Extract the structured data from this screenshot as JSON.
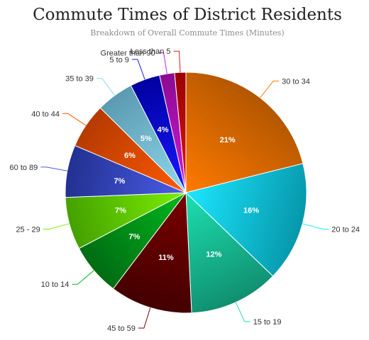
{
  "chart_data": {
    "type": "pie",
    "title": "Commute Times of District Residents",
    "subtitle": "Breakdown of Overall Commute Times (Minutes)",
    "slices": [
      {
        "label": "30 to 34",
        "value": 21,
        "display": "21%",
        "color_inner": "#ff7a00",
        "color_outer": "#b35600"
      },
      {
        "label": "20 to 24",
        "value": 16,
        "display": "16%",
        "color_inner": "#1ce6ff",
        "color_outer": "#0697aa"
      },
      {
        "label": "15 to 19",
        "value": 12,
        "display": "12%",
        "color_inner": "#1de0b0",
        "color_outer": "#108f70"
      },
      {
        "label": "45 to 59",
        "value": 11,
        "display": "11%",
        "color_inner": "#7a0000",
        "color_outer": "#430000"
      },
      {
        "label": "10 to 14",
        "value": 7,
        "display": "7%",
        "color_inner": "#00b81c",
        "color_outer": "#006b12"
      },
      {
        "label": "25 - 29",
        "value": 7,
        "display": "7%",
        "color_inner": "#7cf000",
        "color_outer": "#44a000"
      },
      {
        "label": "60 to 89",
        "value": 7,
        "display": "7%",
        "color_inner": "#4a5ee8",
        "color_outer": "#223090"
      },
      {
        "label": "40 to 44",
        "value": 6,
        "display": "6%",
        "color_inner": "#ff5a00",
        "color_outer": "#b53a00"
      },
      {
        "label": "35 to 39",
        "value": 5,
        "display": "5%",
        "color_inner": "#8fd8ec",
        "color_outer": "#5a9ab0"
      },
      {
        "label": "5 to 9",
        "value": 4,
        "display": "4%",
        "color_inner": "#1a1aff",
        "color_outer": "#0000a0"
      },
      {
        "label": "Greater than 90",
        "value": 2,
        "display": "",
        "color_inner": "#d21ad8",
        "color_outer": "#8a0a90"
      },
      {
        "label": "Less than 5",
        "value": 1.5,
        "display": "",
        "color_inner": "#e01818",
        "color_outer": "#9a0000"
      }
    ]
  }
}
